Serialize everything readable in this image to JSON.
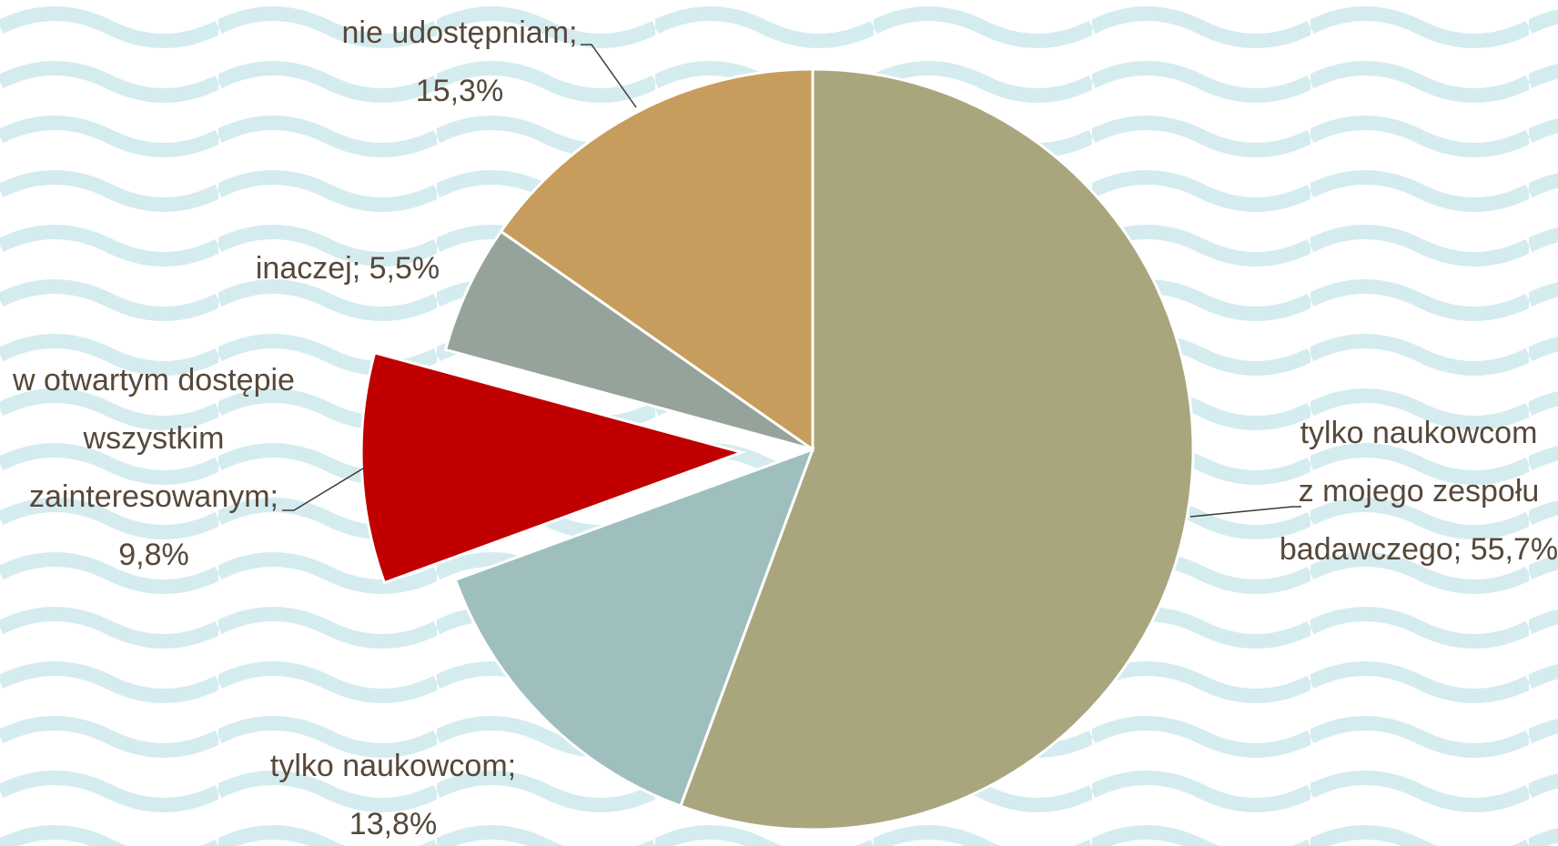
{
  "chart_data": {
    "type": "pie",
    "values": [
      55.7,
      13.8,
      9.8,
      5.5,
      15.3
    ],
    "value_labels": [
      [
        "tylko naukowcom",
        "z mojego zespołu",
        "badawczego; 55,7%"
      ],
      [
        "tylko naukowcom;",
        "13,8%"
      ],
      [
        "w otwartym dostępie",
        "wszystkim",
        "zainteresowanym;",
        "9,8%"
      ],
      [
        "inaczej; 5,5%"
      ],
      [
        "nie udostępniam;",
        "15,3%"
      ]
    ],
    "colors": [
      "#a9a67d",
      "#9fbfbe",
      "#c00000",
      "#95a39b",
      "#c69d5d"
    ]
  }
}
